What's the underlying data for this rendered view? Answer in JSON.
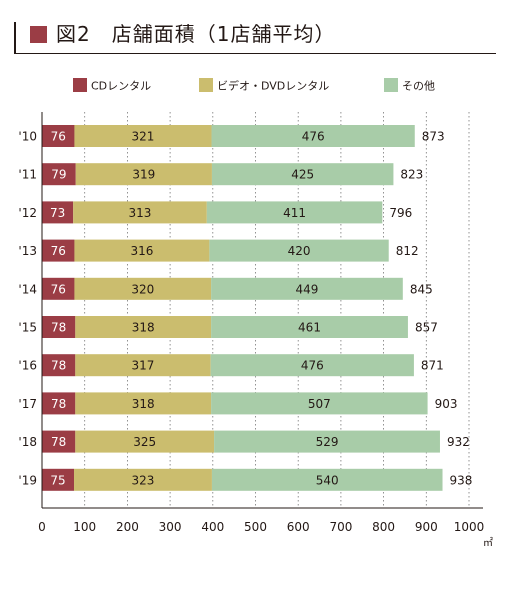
{
  "title": "図2　店舗面積（1店舗平均）",
  "colors": {
    "title_square": "#9b3d45",
    "cd": "#9b3d45",
    "video": "#cbbd6e",
    "other": "#a8cca8",
    "grid": "#777777",
    "text": "#231815"
  },
  "chart_data": {
    "type": "bar",
    "orientation": "horizontal",
    "stacked": true,
    "categories": [
      "'10",
      "'11",
      "'12",
      "'13",
      "'14",
      "'15",
      "'16",
      "'17",
      "'18",
      "'19"
    ],
    "series": [
      {
        "name": "CDレンタル",
        "color": "#9b3d45",
        "values": [
          76,
          79,
          73,
          76,
          76,
          78,
          78,
          78,
          78,
          75
        ]
      },
      {
        "name": "ビデオ・DVDレンタル",
        "color": "#cbbd6e",
        "values": [
          321,
          319,
          313,
          316,
          320,
          318,
          317,
          318,
          325,
          323
        ]
      },
      {
        "name": "その他",
        "color": "#a8cca8",
        "values": [
          476,
          425,
          411,
          420,
          449,
          461,
          476,
          507,
          529,
          540
        ]
      }
    ],
    "totals": [
      873,
      823,
      796,
      812,
      845,
      857,
      871,
      903,
      932,
      938
    ],
    "xlim": [
      0,
      1000
    ],
    "xticks": [
      0,
      100,
      200,
      300,
      400,
      500,
      600,
      700,
      800,
      900,
      1000
    ],
    "unit": "㎡",
    "grid": "vertical dotted",
    "legend": "top"
  }
}
